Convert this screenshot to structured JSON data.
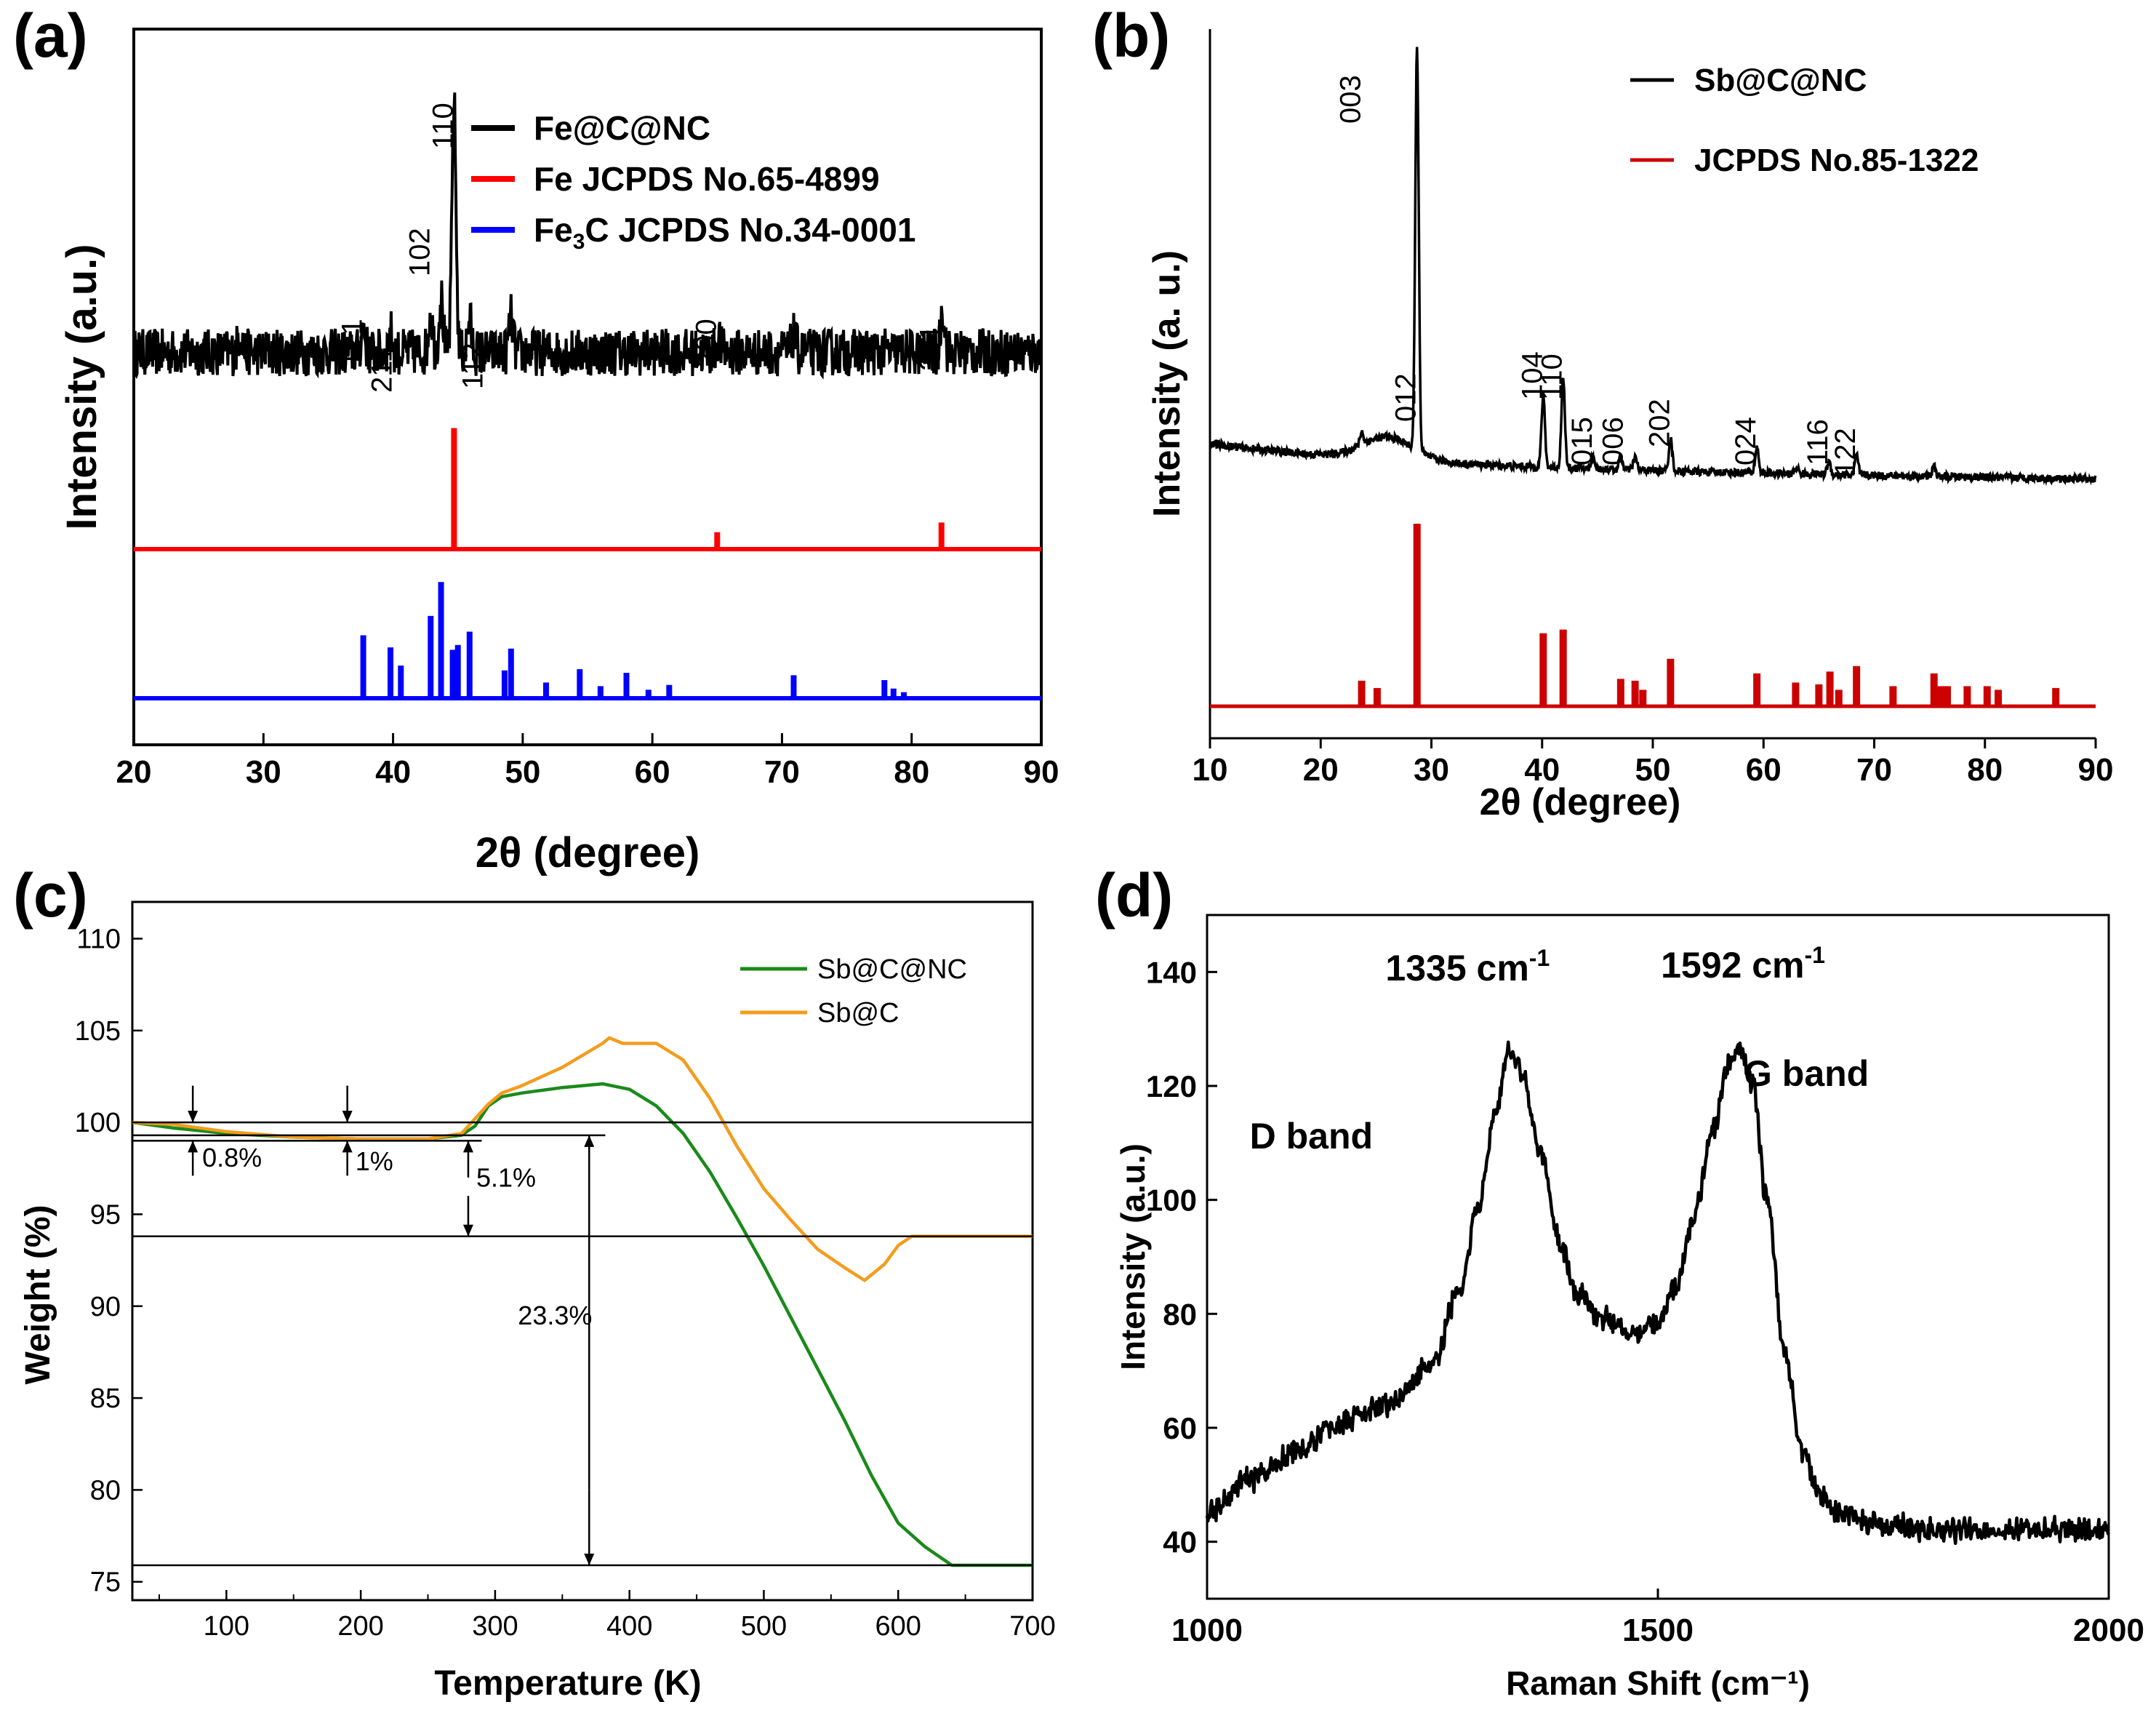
{
  "chart_data": [
    {
      "panel_label": "(a)",
      "type": "line",
      "xlabel": "2θ (degree)",
      "ylabel": "Intensity (a.u.)",
      "xlim": [
        20,
        90
      ],
      "xticks": [
        20,
        30,
        40,
        50,
        60,
        70,
        80,
        90
      ],
      "legend_position": "top-right",
      "series": [
        {
          "name": "Fe@C@NC",
          "color": "#000000",
          "kind": "measured",
          "baseline": 0.58,
          "noise": 0.04,
          "peaks": [
            [
              28.2,
              0.08
            ],
            [
              37.7,
              0.1
            ],
            [
              39.8,
              0.08
            ],
            [
              42.9,
              0.16
            ],
            [
              43.7,
              0.22
            ],
            [
              44.7,
              1.0
            ],
            [
              45.9,
              0.13
            ],
            [
              49.1,
              0.14
            ],
            [
              65.1,
              0.06
            ],
            [
              70.9,
              0.07
            ],
            [
              82.4,
              0.18
            ]
          ]
        },
        {
          "name": "Fe JCPDS No.65-4899",
          "color": "#ff0000",
          "kind": "sticks",
          "baseline": 0.25,
          "scale": 0.14,
          "sticks": [
            [
              44.7,
              1.0
            ],
            [
              65.0,
              0.14
            ],
            [
              82.3,
              0.22
            ]
          ]
        },
        {
          "name": "Fe3C JCPDS No.34-0001",
          "color": "#0000ff",
          "kind": "sticks",
          "baseline": 0.0,
          "scale": 0.14,
          "sticks": [
            [
              37.7,
              0.52
            ],
            [
              39.8,
              0.42
            ],
            [
              40.6,
              0.27
            ],
            [
              42.9,
              0.68
            ],
            [
              43.7,
              0.96
            ],
            [
              44.6,
              0.4
            ],
            [
              45.0,
              0.44
            ],
            [
              45.9,
              0.55
            ],
            [
              48.6,
              0.23
            ],
            [
              49.1,
              0.41
            ],
            [
              51.8,
              0.13
            ],
            [
              54.4,
              0.24
            ],
            [
              56.0,
              0.1
            ],
            [
              58.0,
              0.21
            ],
            [
              59.7,
              0.07
            ],
            [
              61.3,
              0.11
            ],
            [
              70.9,
              0.19
            ],
            [
              77.9,
              0.15
            ],
            [
              78.6,
              0.08
            ],
            [
              79.4,
              0.05
            ]
          ]
        }
      ],
      "annotations": [
        {
          "text": "110",
          "x": 44.7
        },
        {
          "text": "102",
          "x": 42.9
        },
        {
          "text": "121",
          "x": 37.7
        },
        {
          "text": "211",
          "x": 40.0
        },
        {
          "text": "112",
          "x": 47.0
        },
        {
          "text": "200",
          "x": 65.0
        },
        {
          "text": "211",
          "x": 82.3
        }
      ]
    },
    {
      "panel_label": "(b)",
      "type": "line",
      "xlabel": "2θ (degree)",
      "ylabel": "Intensity (a. u.)",
      "xlim": [
        10,
        90
      ],
      "xticks": [
        10,
        20,
        30,
        40,
        50,
        60,
        70,
        80,
        90
      ],
      "legend_position": "top-right",
      "series": [
        {
          "name": "Sb@C@NC",
          "color": "#000000",
          "kind": "measured",
          "baseline": 0.37,
          "noise": 0.006,
          "peaks": [
            [
              23.7,
              0.02
            ],
            [
              28.7,
              0.62
            ],
            [
              40.1,
              0.11
            ],
            [
              41.9,
              0.14
            ],
            [
              44.6,
              0.02
            ],
            [
              47.1,
              0.02
            ],
            [
              48.4,
              0.02
            ],
            [
              51.6,
              0.05
            ],
            [
              59.4,
              0.04
            ],
            [
              63.0,
              0.01
            ],
            [
              65.9,
              0.02
            ],
            [
              68.4,
              0.03
            ],
            [
              75.4,
              0.015
            ]
          ]
        },
        {
          "name": "JCPDS No.85-1322",
          "color": "#cc0000",
          "kind": "sticks",
          "baseline": 0.0,
          "scale": 0.32,
          "sticks": [
            [
              23.7,
              0.14
            ],
            [
              25.1,
              0.1
            ],
            [
              28.7,
              1.0
            ],
            [
              40.1,
              0.4
            ],
            [
              41.9,
              0.42
            ],
            [
              47.1,
              0.15
            ],
            [
              48.4,
              0.14
            ],
            [
              49.1,
              0.09
            ],
            [
              51.6,
              0.26
            ],
            [
              59.4,
              0.18
            ],
            [
              62.9,
              0.13
            ],
            [
              65.0,
              0.12
            ],
            [
              66.0,
              0.19
            ],
            [
              66.8,
              0.09
            ],
            [
              68.4,
              0.22
            ],
            [
              71.7,
              0.11
            ],
            [
              75.4,
              0.18
            ],
            [
              76.0,
              0.11
            ],
            [
              76.6,
              0.11
            ],
            [
              78.4,
              0.11
            ],
            [
              80.2,
              0.11
            ],
            [
              81.2,
              0.09
            ],
            [
              86.4,
              0.1
            ]
          ]
        }
      ],
      "annotations": [
        {
          "text": "012",
          "x": 28.7
        },
        {
          "text": "003",
          "x": 23.7
        },
        {
          "text": "104",
          "x": 40.1
        },
        {
          "text": "110",
          "x": 41.9
        },
        {
          "text": "015",
          "x": 44.6
        },
        {
          "text": "006",
          "x": 47.4
        },
        {
          "text": "202",
          "x": 51.6
        },
        {
          "text": "024",
          "x": 59.4
        },
        {
          "text": "116",
          "x": 65.9
        },
        {
          "text": "122",
          "x": 68.4
        }
      ]
    },
    {
      "panel_label": "(c)",
      "type": "line",
      "xlabel": "Temperature (K)",
      "ylabel": "Weight (%)",
      "xlim": [
        30,
        700
      ],
      "ylim": [
        74,
        112
      ],
      "xticks": [
        100,
        200,
        300,
        400,
        500,
        600,
        700
      ],
      "yticks": [
        75,
        80,
        85,
        90,
        95,
        100,
        105,
        110
      ],
      "legend_position": "top-right",
      "series": [
        {
          "name": "Sb@C@NC",
          "color": "#1a8a1a",
          "x": [
            30,
            60,
            100,
            150,
            200,
            250,
            275,
            285,
            295,
            305,
            320,
            350,
            380,
            400,
            420,
            440,
            460,
            480,
            500,
            520,
            540,
            560,
            580,
            600,
            620,
            640,
            660,
            700
          ],
          "y": [
            100.0,
            99.7,
            99.4,
            99.2,
            99.1,
            99.1,
            99.3,
            99.8,
            100.9,
            101.4,
            101.6,
            101.9,
            102.1,
            101.8,
            100.9,
            99.4,
            97.3,
            94.8,
            92.2,
            89.4,
            86.6,
            83.8,
            80.8,
            78.2,
            76.9,
            75.9,
            75.9,
            75.9
          ]
        },
        {
          "name": "Sb@C",
          "color": "#f39c1f",
          "x": [
            30,
            60,
            100,
            150,
            200,
            250,
            275,
            285,
            295,
            305,
            320,
            350,
            380,
            385,
            395,
            420,
            440,
            460,
            480,
            500,
            520,
            540,
            560,
            575,
            590,
            600,
            610,
            620,
            700
          ],
          "y": [
            100.0,
            99.9,
            99.5,
            99.2,
            99.1,
            99.1,
            99.4,
            100.2,
            101.0,
            101.6,
            102.0,
            103.0,
            104.3,
            104.6,
            104.3,
            104.3,
            103.4,
            101.3,
            98.7,
            96.4,
            94.7,
            93.1,
            92.1,
            91.4,
            92.3,
            93.3,
            93.8,
            93.8,
            93.8
          ]
        }
      ],
      "reference_lines": [
        100,
        93.8,
        75.9
      ],
      "annotations": [
        {
          "text": "0.8%",
          "x": 75
        },
        {
          "text": "1%",
          "x": 190
        },
        {
          "text": "5.1%",
          "x": 280
        },
        {
          "text": "23.3%",
          "x": 370
        }
      ]
    },
    {
      "panel_label": "(d)",
      "type": "line",
      "xlabel": "Raman Shift (cm⁻¹)",
      "ylabel": "Intensity (a.u.)",
      "xlim": [
        1000,
        2000
      ],
      "ylim": [
        30,
        150
      ],
      "xticks": [
        1000,
        1500,
        2000
      ],
      "yticks": [
        40,
        60,
        80,
        100,
        120,
        140
      ],
      "series": [
        {
          "name": "",
          "color": "#000000",
          "x": [
            1000,
            1050,
            1100,
            1150,
            1200,
            1250,
            1280,
            1300,
            1320,
            1335,
            1350,
            1370,
            1390,
            1410,
            1440,
            1470,
            1500,
            1520,
            1540,
            1560,
            1580,
            1592,
            1605,
            1620,
            1640,
            1660,
            1680,
            1700,
            1750,
            1800,
            1850,
            1900,
            1950,
            2000
          ],
          "y": [
            45,
            51,
            56,
            61,
            64,
            71,
            84,
            98,
            115,
            126,
            122,
            108,
            93,
            84,
            79,
            77,
            78,
            85,
            97,
            112,
            124,
            127,
            120,
            101,
            74,
            56,
            48,
            45,
            43,
            42,
            42,
            42,
            42,
            42
          ],
          "noise": 1.4
        }
      ],
      "annotations": [
        {
          "text": "1335 cm",
          "sup": "-1",
          "x": 1335
        },
        {
          "text": "1592 cm",
          "sup": "-1",
          "x": 1592
        },
        {
          "text": "D band",
          "x": 1140
        },
        {
          "text": "G band",
          "x": 1700
        }
      ]
    }
  ]
}
